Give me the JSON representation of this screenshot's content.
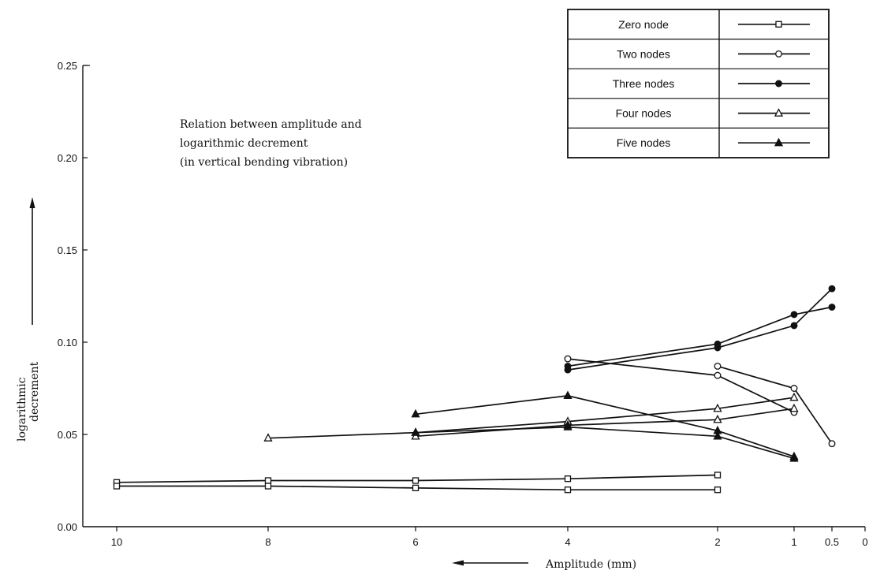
{
  "chart_data": {
    "type": "line",
    "title_lines": [
      "Relation between amplitude and",
      "logarithmic decrement",
      "(in vertical bending vibration)"
    ],
    "xlabel": "Amplitude (mm)",
    "ylabel_lines": [
      "logarithmic",
      "decrement"
    ],
    "x_ticks": [
      {
        "value": 10,
        "label": "10"
      },
      {
        "value": 8,
        "label": "8"
      },
      {
        "value": 6,
        "label": "6"
      },
      {
        "value": 4,
        "label": "4"
      },
      {
        "value": 2,
        "label": "2"
      },
      {
        "value": 1,
        "label": "1"
      },
      {
        "value": 0.5,
        "label": "0.5"
      },
      {
        "value": 0,
        "label": "0"
      }
    ],
    "y_ticks": [
      {
        "value": 0.0,
        "label": "0.00"
      },
      {
        "value": 0.05,
        "label": "0.05"
      },
      {
        "value": 0.1,
        "label": "0.10"
      },
      {
        "value": 0.15,
        "label": "0.15"
      },
      {
        "value": 0.2,
        "label": "0.20"
      },
      {
        "value": 0.25,
        "label": "0.25"
      }
    ],
    "ylim": [
      0,
      0.25
    ],
    "x_axis_direction": "decreasing to the right",
    "grid": false,
    "legend_position": "top-right",
    "series": [
      {
        "name": "Zero node",
        "marker": "square-open",
        "lines": [
          [
            {
              "x": 10,
              "y": 0.024
            },
            {
              "x": 8,
              "y": 0.025
            },
            {
              "x": 6,
              "y": 0.025
            },
            {
              "x": 4,
              "y": 0.026
            },
            {
              "x": 2,
              "y": 0.028
            }
          ],
          [
            {
              "x": 10,
              "y": 0.022
            },
            {
              "x": 8,
              "y": 0.022
            },
            {
              "x": 6,
              "y": 0.021
            },
            {
              "x": 4,
              "y": 0.02
            },
            {
              "x": 2,
              "y": 0.02
            }
          ]
        ]
      },
      {
        "name": "Two nodes",
        "marker": "circle-open",
        "lines": [
          [
            {
              "x": 4,
              "y": 0.091
            },
            {
              "x": 2,
              "y": 0.082
            },
            {
              "x": 1,
              "y": 0.062
            }
          ],
          [
            {
              "x": 2,
              "y": 0.087
            },
            {
              "x": 1,
              "y": 0.075
            },
            {
              "x": 0.5,
              "y": 0.045
            }
          ]
        ]
      },
      {
        "name": "Three nodes",
        "marker": "circle-filled",
        "lines": [
          [
            {
              "x": 4,
              "y": 0.085
            },
            {
              "x": 2,
              "y": 0.097
            },
            {
              "x": 1,
              "y": 0.109
            },
            {
              "x": 0.5,
              "y": 0.129
            }
          ],
          [
            {
              "x": 4,
              "y": 0.087
            },
            {
              "x": 2,
              "y": 0.099
            },
            {
              "x": 1,
              "y": 0.115
            },
            {
              "x": 0.5,
              "y": 0.119
            }
          ]
        ]
      },
      {
        "name": "Four nodes",
        "marker": "triangle-open",
        "lines": [
          [
            {
              "x": 8,
              "y": 0.048
            },
            {
              "x": 6,
              "y": 0.051
            },
            {
              "x": 4,
              "y": 0.057
            },
            {
              "x": 2,
              "y": 0.064
            },
            {
              "x": 1,
              "y": 0.07
            }
          ],
          [
            {
              "x": 6,
              "y": 0.049
            },
            {
              "x": 4,
              "y": 0.055
            },
            {
              "x": 2,
              "y": 0.058
            },
            {
              "x": 1,
              "y": 0.064
            }
          ]
        ]
      },
      {
        "name": "Five nodes",
        "marker": "triangle-filled",
        "lines": [
          [
            {
              "x": 6,
              "y": 0.061
            },
            {
              "x": 4,
              "y": 0.071
            },
            {
              "x": 2,
              "y": 0.052
            },
            {
              "x": 1,
              "y": 0.038
            }
          ],
          [
            {
              "x": 6,
              "y": 0.051
            },
            {
              "x": 4,
              "y": 0.054
            },
            {
              "x": 2,
              "y": 0.049
            },
            {
              "x": 1,
              "y": 0.037
            }
          ]
        ]
      }
    ]
  }
}
